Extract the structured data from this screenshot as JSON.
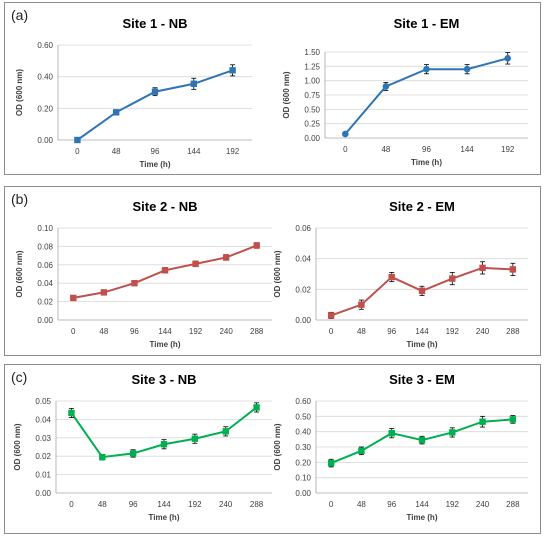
{
  "panels": [
    {
      "label": "(a)",
      "charts": [
        0,
        1
      ]
    },
    {
      "label": "(b)",
      "charts": [
        2,
        3
      ]
    },
    {
      "label": "(c)",
      "charts": [
        4,
        5
      ]
    }
  ],
  "chart_data": [
    {
      "type": "line",
      "title": "Site 1 - NB",
      "xlabel": "Time (h)",
      "ylabel": "OD (600 nm)",
      "categories": [
        "0",
        "48",
        "96",
        "144",
        "192"
      ],
      "yticks": [
        "0.00",
        "0.20",
        "0.40",
        "0.60"
      ],
      "ylim": [
        0,
        0.6
      ],
      "grid": true,
      "legend": "none",
      "color": "#2e75b6",
      "marker": "square",
      "series": [
        {
          "values": [
            0.0,
            0.175,
            0.305,
            0.355,
            0.44
          ],
          "errors": [
            0.005,
            0.015,
            0.025,
            0.035,
            0.035
          ]
        }
      ]
    },
    {
      "type": "line",
      "title": "Site 1 - EM",
      "xlabel": "Time (h)",
      "ylabel": "OD (600 nm)",
      "categories": [
        "0",
        "48",
        "96",
        "144",
        "192"
      ],
      "yticks": [
        "0.00",
        "0.25",
        "0.50",
        "0.75",
        "1.00",
        "1.25",
        "1.50"
      ],
      "ylim": [
        0,
        1.5
      ],
      "grid": true,
      "legend": "none",
      "color": "#2e75b6",
      "marker": "circle",
      "series": [
        {
          "values": [
            0.07,
            0.9,
            1.2,
            1.2,
            1.39
          ],
          "errors": [
            0.01,
            0.07,
            0.08,
            0.08,
            0.1
          ]
        }
      ]
    },
    {
      "type": "line",
      "title": "Site 2 - NB",
      "xlabel": "Time (h)",
      "ylabel": "OD (600 nm)",
      "categories": [
        "0",
        "48",
        "96",
        "144",
        "192",
        "240",
        "288"
      ],
      "yticks": [
        "0.00",
        "0.02",
        "0.04",
        "0.06",
        "0.08",
        "0.10"
      ],
      "ylim": [
        0,
        0.1
      ],
      "grid": true,
      "legend": "none",
      "color": "#c0504d",
      "marker": "square",
      "series": [
        {
          "values": [
            0.024,
            0.03,
            0.04,
            0.054,
            0.061,
            0.068,
            0.081
          ],
          "errors": [
            0.001,
            0.001,
            0.002,
            0.003,
            0.003,
            0.003,
            0.003
          ]
        }
      ]
    },
    {
      "type": "line",
      "title": "Site 2 - EM",
      "xlabel": "Time (h)",
      "ylabel": "OD (600 nm)",
      "categories": [
        "0",
        "48",
        "96",
        "144",
        "192",
        "240",
        "288"
      ],
      "yticks": [
        "0.00",
        "0.02",
        "0.04",
        "0.06"
      ],
      "ylim": [
        0,
        0.06
      ],
      "grid": true,
      "legend": "none",
      "color": "#c0504d",
      "marker": "square",
      "series": [
        {
          "values": [
            0.003,
            0.01,
            0.028,
            0.019,
            0.027,
            0.034,
            0.033
          ],
          "errors": [
            0.002,
            0.003,
            0.003,
            0.003,
            0.004,
            0.004,
            0.004
          ]
        }
      ]
    },
    {
      "type": "line",
      "title": "Site 3 - NB",
      "xlabel": "Time (h)",
      "ylabel": "OD (600 nm)",
      "categories": [
        "0",
        "48",
        "96",
        "144",
        "192",
        "240",
        "288"
      ],
      "yticks": [
        "0.00",
        "0.01",
        "0.02",
        "0.03",
        "0.04",
        "0.05"
      ],
      "ylim": [
        0,
        0.05
      ],
      "grid": true,
      "legend": "none",
      "color": "#00b050",
      "marker": "square",
      "series": [
        {
          "values": [
            0.0435,
            0.0195,
            0.0215,
            0.0265,
            0.0295,
            0.0335,
            0.0465
          ],
          "errors": [
            0.0025,
            0.0015,
            0.002,
            0.0025,
            0.0025,
            0.0025,
            0.0025
          ]
        }
      ]
    },
    {
      "type": "line",
      "title": "Site 3 - EM",
      "xlabel": "Time (h)",
      "ylabel": "OD (600 nm)",
      "categories": [
        "0",
        "48",
        "96",
        "144",
        "192",
        "240",
        "288"
      ],
      "yticks": [
        "0.00",
        "0.10",
        "0.20",
        "0.30",
        "0.40",
        "0.50",
        "0.60"
      ],
      "ylim": [
        0,
        0.6
      ],
      "grid": true,
      "legend": "none",
      "color": "#00b050",
      "marker": "square",
      "series": [
        {
          "values": [
            0.195,
            0.275,
            0.39,
            0.345,
            0.395,
            0.465,
            0.48
          ],
          "errors": [
            0.025,
            0.025,
            0.03,
            0.025,
            0.03,
            0.035,
            0.025
          ]
        }
      ]
    }
  ]
}
